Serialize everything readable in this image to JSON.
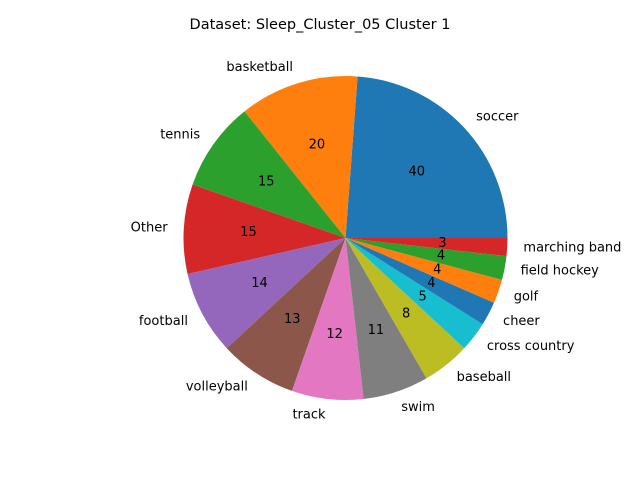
{
  "chart_data": {
    "type": "pie",
    "title": "Dataset: Sleep_Cluster_05 Cluster 1",
    "start_angle_deg": 0,
    "direction": "counterclockwise",
    "slices": [
      {
        "label": "soccer",
        "value": 40,
        "color": "#1f77b4"
      },
      {
        "label": "basketball",
        "value": 20,
        "color": "#ff7f0e"
      },
      {
        "label": "tennis",
        "value": 15,
        "color": "#2ca02c"
      },
      {
        "label": "Other",
        "value": 15,
        "color": "#d62728"
      },
      {
        "label": "football",
        "value": 14,
        "color": "#9467bd"
      },
      {
        "label": "volleyball",
        "value": 13,
        "color": "#8c564b"
      },
      {
        "label": "track",
        "value": 12,
        "color": "#e377c2"
      },
      {
        "label": "swim",
        "value": 11,
        "color": "#7f7f7f"
      },
      {
        "label": "baseball",
        "value": 8,
        "color": "#bcbd22"
      },
      {
        "label": "cross country",
        "value": 5,
        "color": "#17becf"
      },
      {
        "label": "cheer",
        "value": 4,
        "color": "#1f77b4"
      },
      {
        "label": "golf",
        "value": 4,
        "color": "#ff7f0e"
      },
      {
        "label": "field hockey",
        "value": 4,
        "color": "#2ca02c"
      },
      {
        "label": "marching band",
        "value": 3,
        "color": "#d62728"
      }
    ]
  }
}
